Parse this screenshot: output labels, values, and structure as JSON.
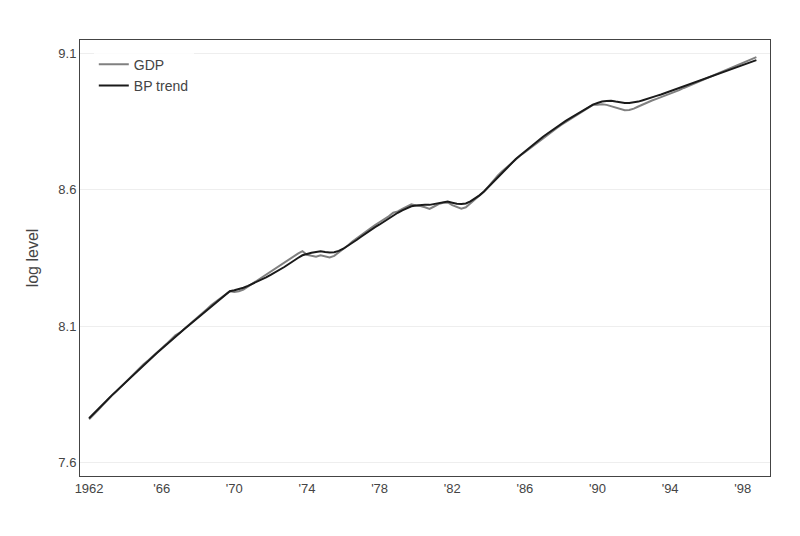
{
  "chart_data": {
    "type": "line",
    "ylabel": "log level",
    "xlim": [
      1961.5,
      1999.5
    ],
    "ylim": [
      7.55,
      9.15
    ],
    "xticks": [
      1962,
      {
        "value": 1966,
        "label": "'66"
      },
      {
        "value": 1970,
        "label": "'70"
      },
      {
        "value": 1974,
        "label": "'74"
      },
      {
        "value": 1978,
        "label": "'78"
      },
      {
        "value": 1982,
        "label": "'82"
      },
      {
        "value": 1986,
        "label": "'86"
      },
      {
        "value": 1990,
        "label": "'90"
      },
      {
        "value": 1994,
        "label": "'94"
      },
      {
        "value": 1998,
        "label": "'98"
      }
    ],
    "yticks": [
      7.6,
      8.1,
      8.6,
      9.1
    ],
    "grid": "y",
    "legend": "upper left",
    "x": [
      1962.0,
      1962.25,
      1962.5,
      1962.75,
      1963.0,
      1963.25,
      1963.5,
      1963.75,
      1964.0,
      1964.25,
      1964.5,
      1964.75,
      1965.0,
      1965.25,
      1965.5,
      1965.75,
      1966.0,
      1966.25,
      1966.5,
      1966.75,
      1967.0,
      1967.25,
      1967.5,
      1967.75,
      1968.0,
      1968.25,
      1968.5,
      1968.75,
      1969.0,
      1969.25,
      1969.5,
      1969.75,
      1970.0,
      1970.25,
      1970.5,
      1970.75,
      1971.0,
      1971.25,
      1971.5,
      1971.75,
      1972.0,
      1972.25,
      1972.5,
      1972.75,
      1973.0,
      1973.25,
      1973.5,
      1973.75,
      1974.0,
      1974.25,
      1974.5,
      1974.75,
      1975.0,
      1975.25,
      1975.5,
      1975.75,
      1976.0,
      1976.25,
      1976.5,
      1976.75,
      1977.0,
      1977.25,
      1977.5,
      1977.75,
      1978.0,
      1978.25,
      1978.5,
      1978.75,
      1979.0,
      1979.25,
      1979.5,
      1979.75,
      1980.0,
      1980.25,
      1980.5,
      1980.75,
      1981.0,
      1981.25,
      1981.5,
      1981.75,
      1982.0,
      1982.25,
      1982.5,
      1982.75,
      1983.0,
      1983.25,
      1983.5,
      1983.75,
      1984.0,
      1984.25,
      1984.5,
      1984.75,
      1985.0,
      1985.25,
      1985.5,
      1985.75,
      1986.0,
      1986.25,
      1986.5,
      1986.75,
      1987.0,
      1987.25,
      1987.5,
      1987.75,
      1988.0,
      1988.25,
      1988.5,
      1988.75,
      1989.0,
      1989.25,
      1989.5,
      1989.75,
      1990.0,
      1990.25,
      1990.5,
      1990.75,
      1991.0,
      1991.25,
      1991.5,
      1991.75,
      1992.0,
      1992.25,
      1992.5,
      1992.75,
      1993.0,
      1993.25,
      1993.5,
      1993.75,
      1994.0,
      1994.25,
      1994.5,
      1994.75,
      1995.0,
      1995.25,
      1995.5,
      1995.75,
      1996.0,
      1996.25,
      1996.5,
      1996.75,
      1997.0,
      1997.25,
      1997.5,
      1997.75,
      1998.0,
      1998.25,
      1998.5,
      1998.75
    ],
    "series": [
      {
        "name": "GDP",
        "color": "#808080",
        "values": [
          7.758,
          7.774,
          7.792,
          7.81,
          7.828,
          7.845,
          7.86,
          7.877,
          7.893,
          7.909,
          7.926,
          7.944,
          7.96,
          7.974,
          7.99,
          8.004,
          8.019,
          8.034,
          8.05,
          8.066,
          8.076,
          8.09,
          8.105,
          8.118,
          8.133,
          8.149,
          8.163,
          8.178,
          8.19,
          8.205,
          8.216,
          8.228,
          8.225,
          8.228,
          8.234,
          8.245,
          8.257,
          8.267,
          8.278,
          8.288,
          8.299,
          8.31,
          8.321,
          8.332,
          8.343,
          8.357,
          8.366,
          8.375,
          8.362,
          8.358,
          8.355,
          8.36,
          8.356,
          8.352,
          8.358,
          8.37,
          8.382,
          8.396,
          8.41,
          8.423,
          8.435,
          8.447,
          8.459,
          8.471,
          8.481,
          8.492,
          8.503,
          8.516,
          8.521,
          8.53,
          8.538,
          8.547,
          8.543,
          8.541,
          8.536,
          8.53,
          8.539,
          8.548,
          8.553,
          8.554,
          8.544,
          8.536,
          8.531,
          8.536,
          8.55,
          8.563,
          8.577,
          8.594,
          8.613,
          8.633,
          8.652,
          8.668,
          8.683,
          8.697,
          8.712,
          8.726,
          8.738,
          8.751,
          8.764,
          8.777,
          8.79,
          8.803,
          8.815,
          8.826,
          8.838,
          8.849,
          8.859,
          8.87,
          8.88,
          8.891,
          8.901,
          8.912,
          8.912,
          8.914,
          8.912,
          8.907,
          8.9,
          8.895,
          8.892,
          8.893,
          8.898,
          8.906,
          8.914,
          8.921,
          8.928,
          8.934,
          8.94,
          8.947,
          8.954,
          8.96,
          8.966,
          8.974,
          8.981,
          8.988,
          8.996,
          9.003,
          9.01,
          9.017,
          9.024,
          9.031,
          9.038,
          9.046,
          9.053,
          9.059,
          9.067,
          9.074,
          9.08,
          9.087
        ]
      },
      {
        "name": "BP trend",
        "color": "#1a1a1a",
        "values": [
          7.762,
          7.778,
          7.795,
          7.812,
          7.829,
          7.846,
          7.862,
          7.878,
          7.894,
          7.91,
          7.926,
          7.942,
          7.957,
          7.972,
          7.987,
          8.002,
          8.017,
          8.031,
          8.046,
          8.061,
          8.075,
          8.089,
          8.103,
          8.117,
          8.131,
          8.146,
          8.16,
          8.174,
          8.188,
          8.202,
          8.215,
          8.228,
          8.232,
          8.236,
          8.241,
          8.248,
          8.255,
          8.263,
          8.271,
          8.279,
          8.288,
          8.297,
          8.307,
          8.317,
          8.328,
          8.34,
          8.35,
          8.36,
          8.365,
          8.369,
          8.372,
          8.375,
          8.372,
          8.37,
          8.371,
          8.376,
          8.384,
          8.394,
          8.405,
          8.417,
          8.429,
          8.441,
          8.452,
          8.463,
          8.473,
          8.484,
          8.495,
          8.507,
          8.516,
          8.525,
          8.533,
          8.54,
          8.543,
          8.545,
          8.545,
          8.545,
          8.548,
          8.552,
          8.555,
          8.557,
          8.553,
          8.549,
          8.548,
          8.55,
          8.558,
          8.568,
          8.58,
          8.594,
          8.611,
          8.629,
          8.647,
          8.665,
          8.682,
          8.698,
          8.713,
          8.727,
          8.741,
          8.755,
          8.769,
          8.782,
          8.795,
          8.807,
          8.819,
          8.831,
          8.842,
          8.853,
          8.863,
          8.873,
          8.883,
          8.893,
          8.903,
          8.913,
          8.919,
          8.924,
          8.926,
          8.927,
          8.924,
          8.921,
          8.919,
          8.919,
          8.921,
          8.924,
          8.929,
          8.935,
          8.94,
          8.945,
          8.95,
          8.956,
          8.961,
          8.966,
          8.972,
          8.978,
          8.984,
          8.99,
          8.997,
          9.003,
          9.009,
          9.015,
          9.021,
          9.027,
          9.033,
          9.039,
          9.045,
          9.051,
          9.057,
          9.063,
          9.07,
          9.076
        ]
      }
    ]
  }
}
